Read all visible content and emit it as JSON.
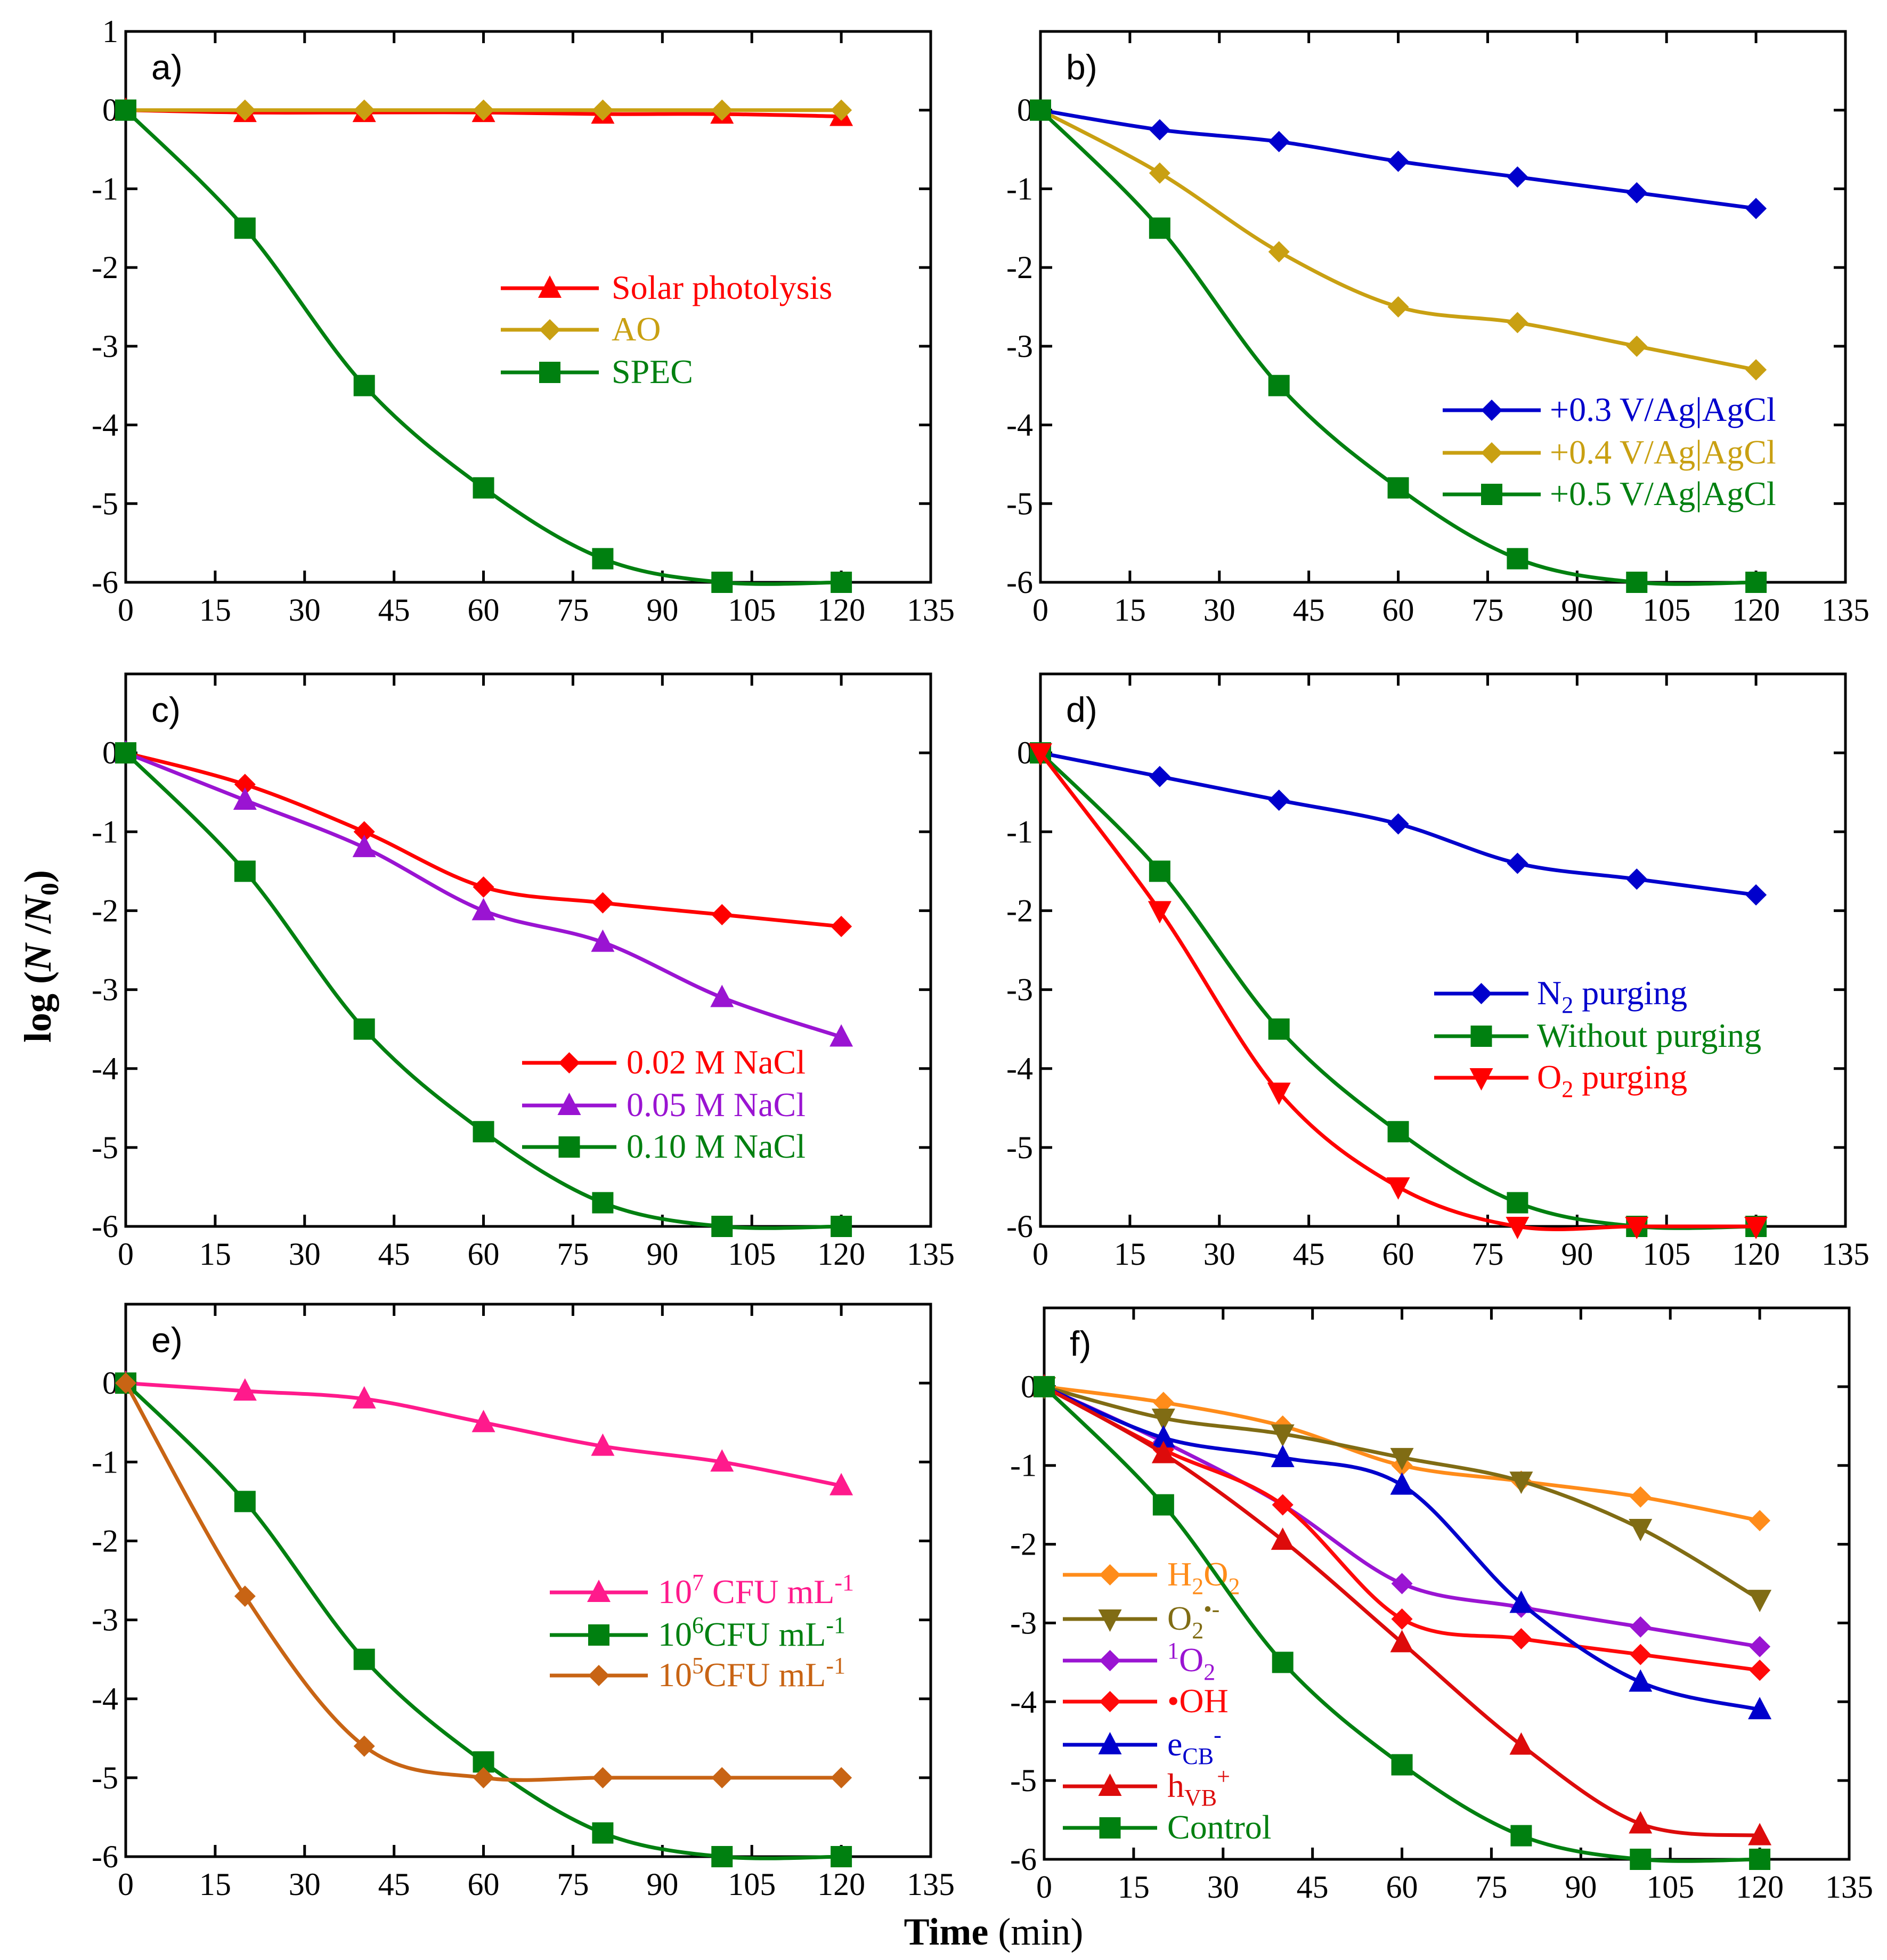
{
  "ylabel": {
    "pre": "log (",
    "N": "N",
    "slash": " /",
    "N0": "N",
    "sub0": "0",
    ")": ")"
  },
  "xlabel": {
    "bold": "Time",
    "rest": " (min)"
  },
  "chart_data": [
    {
      "type": "line",
      "panel": "a)",
      "xlim": [
        0,
        135
      ],
      "ylim": [
        -6,
        1
      ],
      "xticks": [
        0,
        15,
        30,
        45,
        60,
        75,
        90,
        105,
        120,
        135
      ],
      "yticks": [
        1,
        0,
        -1,
        -2,
        -3,
        -4,
        -5,
        -6
      ],
      "x": [
        0,
        20,
        40,
        60,
        80,
        100,
        120
      ],
      "series": [
        {
          "name": "Solar photolysis",
          "label": [
            {
              "t": "Solar photolysis"
            }
          ],
          "color": "#ff0000",
          "marker": "triangle",
          "values": [
            0,
            -0.03,
            -0.03,
            -0.03,
            -0.05,
            -0.05,
            -0.08
          ]
        },
        {
          "name": "AO",
          "label": [
            {
              "t": "AO"
            }
          ],
          "color": "#c9a012",
          "marker": "diamond",
          "values": [
            0,
            0,
            0,
            0,
            0,
            0,
            0
          ]
        },
        {
          "name": "SPEC",
          "label": [
            {
              "t": "SPEC"
            }
          ],
          "color": "#008010",
          "marker": "square",
          "values": [
            0,
            -1.5,
            -3.5,
            -4.8,
            -5.7,
            -6,
            -6
          ]
        }
      ]
    },
    {
      "type": "line",
      "panel": "b)",
      "xlim": [
        0,
        135
      ],
      "ylim": [
        -6,
        1
      ],
      "xticks": [
        0,
        15,
        30,
        45,
        60,
        75,
        90,
        105,
        120,
        135
      ],
      "yticks": [
        0,
        -1,
        -2,
        -3,
        -4,
        -5,
        -6
      ],
      "x": [
        0,
        20,
        40,
        60,
        80,
        100,
        120
      ],
      "series": [
        {
          "name": "+0.3 V/Ag|AgCl",
          "label": [
            {
              "t": "+0.3 V/Ag|AgCl"
            }
          ],
          "color": "#0000cc",
          "marker": "diamond",
          "values": [
            0,
            -0.25,
            -0.4,
            -0.65,
            -0.85,
            -1.05,
            -1.25
          ]
        },
        {
          "name": "+0.4 V/Ag|AgCl",
          "label": [
            {
              "t": "+0.4 V/Ag|AgCl"
            }
          ],
          "color": "#c9a012",
          "marker": "diamond",
          "values": [
            0,
            -0.8,
            -1.8,
            -2.5,
            -2.7,
            -3.0,
            -3.3
          ]
        },
        {
          "name": "+0.5 V/Ag|AgCl",
          "label": [
            {
              "t": "+0.5 V/Ag|AgCl"
            }
          ],
          "color": "#008010",
          "marker": "square",
          "values": [
            0,
            -1.5,
            -3.5,
            -4.8,
            -5.7,
            -6,
            -6
          ]
        }
      ]
    },
    {
      "type": "line",
      "panel": "c)",
      "xlim": [
        0,
        135
      ],
      "ylim": [
        -6,
        1
      ],
      "xticks": [
        0,
        15,
        30,
        45,
        60,
        75,
        90,
        105,
        120,
        135
      ],
      "yticks": [
        0,
        -1,
        -2,
        -3,
        -4,
        -5,
        -6
      ],
      "x": [
        0,
        20,
        40,
        60,
        80,
        100,
        120
      ],
      "series": [
        {
          "name": "0.02 M NaCl",
          "label": [
            {
              "t": "0.02 M NaCl"
            }
          ],
          "color": "#ff0000",
          "marker": "diamond",
          "values": [
            0,
            -0.4,
            -1.0,
            -1.7,
            -1.9,
            -2.05,
            -2.2
          ]
        },
        {
          "name": "0.05 M NaCl",
          "label": [
            {
              "t": "0.05 M NaCl"
            }
          ],
          "color": "#9a14d2",
          "marker": "triangle",
          "values": [
            0,
            -0.6,
            -1.2,
            -2.0,
            -2.4,
            -3.1,
            -3.6
          ]
        },
        {
          "name": "0.10 M NaCl",
          "label": [
            {
              "t": "0.10 M NaCl"
            }
          ],
          "color": "#008010",
          "marker": "square",
          "values": [
            0,
            -1.5,
            -3.5,
            -4.8,
            -5.7,
            -6,
            -6
          ]
        }
      ]
    },
    {
      "type": "line",
      "panel": "d)",
      "xlim": [
        0,
        135
      ],
      "ylim": [
        -6,
        1
      ],
      "xticks": [
        0,
        15,
        30,
        45,
        60,
        75,
        90,
        105,
        120,
        135
      ],
      "yticks": [
        0,
        -1,
        -2,
        -3,
        -4,
        -5,
        -6
      ],
      "x": [
        0,
        20,
        40,
        60,
        80,
        100,
        120
      ],
      "series": [
        {
          "name": "N2 purging",
          "label": [
            {
              "t": "N"
            },
            {
              "t": "2",
              "sub": true
            },
            {
              "t": " purging"
            }
          ],
          "color": "#0000cc",
          "marker": "diamond",
          "values": [
            0,
            -0.3,
            -0.6,
            -0.9,
            -1.4,
            -1.6,
            -1.8
          ]
        },
        {
          "name": "Without purging",
          "label": [
            {
              "t": "Without purging"
            }
          ],
          "color": "#008010",
          "marker": "square",
          "values": [
            0,
            -1.5,
            -3.5,
            -4.8,
            -5.7,
            -6,
            -6
          ]
        },
        {
          "name": "O2 purging",
          "label": [
            {
              "t": "O"
            },
            {
              "t": "2",
              "sub": true
            },
            {
              "t": " purging"
            }
          ],
          "color": "#ff0000",
          "marker": "down-triangle",
          "values": [
            0,
            -2.0,
            -4.3,
            -5.5,
            -6,
            -6,
            -6
          ]
        }
      ]
    },
    {
      "type": "line",
      "panel": "e)",
      "xlim": [
        0,
        135
      ],
      "ylim": [
        -6,
        1
      ],
      "xticks": [
        0,
        15,
        30,
        45,
        60,
        75,
        90,
        105,
        120,
        135
      ],
      "yticks": [
        0,
        -1,
        -2,
        -3,
        -4,
        -5,
        -6
      ],
      "x": [
        0,
        20,
        40,
        60,
        80,
        100,
        120
      ],
      "series": [
        {
          "name": "10^7 CFU mL^-1",
          "label": [
            {
              "t": "10"
            },
            {
              "t": "7",
              "sup": true
            },
            {
              "t": " CFU mL"
            },
            {
              "t": "-1",
              "sup": true
            }
          ],
          "color": "#ff1a8c",
          "marker": "triangle",
          "values": [
            0,
            -0.1,
            -0.2,
            -0.5,
            -0.8,
            -1.0,
            -1.3
          ]
        },
        {
          "name": "10^6 CFU mL^-1",
          "label": [
            {
              "t": "10"
            },
            {
              "t": "6",
              "sup": true
            },
            {
              "t": "CFU mL"
            },
            {
              "t": "-1",
              "sup": true
            }
          ],
          "color": "#008010",
          "marker": "square",
          "values": [
            0,
            -1.5,
            -3.5,
            -4.8,
            -5.7,
            -6,
            -6
          ]
        },
        {
          "name": "10^5 CFU mL^-1",
          "label": [
            {
              "t": "10"
            },
            {
              "t": "5",
              "sup": true
            },
            {
              "t": "CFU mL"
            },
            {
              "t": "-1",
              "sup": true
            }
          ],
          "color": "#c86414",
          "marker": "diamond",
          "values": [
            0,
            -2.7,
            -4.6,
            -5.0,
            -5.0,
            -5.0,
            -5.0
          ]
        }
      ]
    },
    {
      "type": "line",
      "panel": "f)",
      "xlim": [
        0,
        135
      ],
      "ylim": [
        -6,
        1
      ],
      "xticks": [
        0,
        15,
        30,
        45,
        60,
        75,
        90,
        105,
        120,
        135
      ],
      "yticks": [
        0,
        -1,
        -2,
        -3,
        -4,
        -5,
        -6
      ],
      "x": [
        0,
        20,
        40,
        60,
        80,
        100,
        120
      ],
      "series": [
        {
          "name": "H2O2",
          "label": [
            {
              "t": "H"
            },
            {
              "t": "2",
              "sub": true
            },
            {
              "t": "O"
            },
            {
              "t": "2",
              "sub": true
            }
          ],
          "color": "#ff8c1a",
          "marker": "diamond",
          "values": [
            0,
            -0.2,
            -0.5,
            -1.0,
            -1.2,
            -1.4,
            -1.7
          ]
        },
        {
          "name": "O2•-",
          "label": [
            {
              "t": "O"
            },
            {
              "t": "2",
              "sub": true
            },
            {
              "t": "•-",
              "sup": true
            }
          ],
          "color": "#806c14",
          "marker": "down-triangle",
          "values": [
            0,
            -0.4,
            -0.6,
            -0.9,
            -1.2,
            -1.8,
            -2.7
          ]
        },
        {
          "name": "1O2",
          "label": [
            {
              "t": "1",
              "sup": true
            },
            {
              "t": "O"
            },
            {
              "t": "2",
              "sub": true
            }
          ],
          "color": "#9a14d2",
          "marker": "diamond",
          "values": [
            0,
            -0.7,
            -1.5,
            -2.5,
            -2.8,
            -3.05,
            -3.3
          ]
        },
        {
          "name": "•OH",
          "label": [
            {
              "t": "•OH"
            }
          ],
          "color": "#ff0a0a",
          "marker": "diamond",
          "values": [
            0,
            -0.8,
            -1.5,
            -2.95,
            -3.2,
            -3.4,
            -3.6
          ]
        },
        {
          "name": "eCB-",
          "label": [
            {
              "t": "e"
            },
            {
              "t": "CB",
              "sub": true
            },
            {
              "t": "-",
              "sup": true
            }
          ],
          "color": "#0000cc",
          "marker": "triangle",
          "values": [
            0,
            -0.65,
            -0.9,
            -1.25,
            -2.75,
            -3.75,
            -4.1
          ]
        },
        {
          "name": "hVB+",
          "label": [
            {
              "t": "h"
            },
            {
              "t": "VB",
              "sub": true
            },
            {
              "t": "+",
              "sup": true
            }
          ],
          "color": "#dd0b0b",
          "marker": "triangle",
          "values": [
            0,
            -0.85,
            -1.95,
            -3.25,
            -4.55,
            -5.55,
            -5.7
          ]
        },
        {
          "name": "Control",
          "label": [
            {
              "t": "Control"
            }
          ],
          "color": "#008010",
          "marker": "square",
          "values": [
            0,
            -1.5,
            -3.5,
            -4.8,
            -5.7,
            -6,
            -6
          ]
        }
      ]
    }
  ]
}
